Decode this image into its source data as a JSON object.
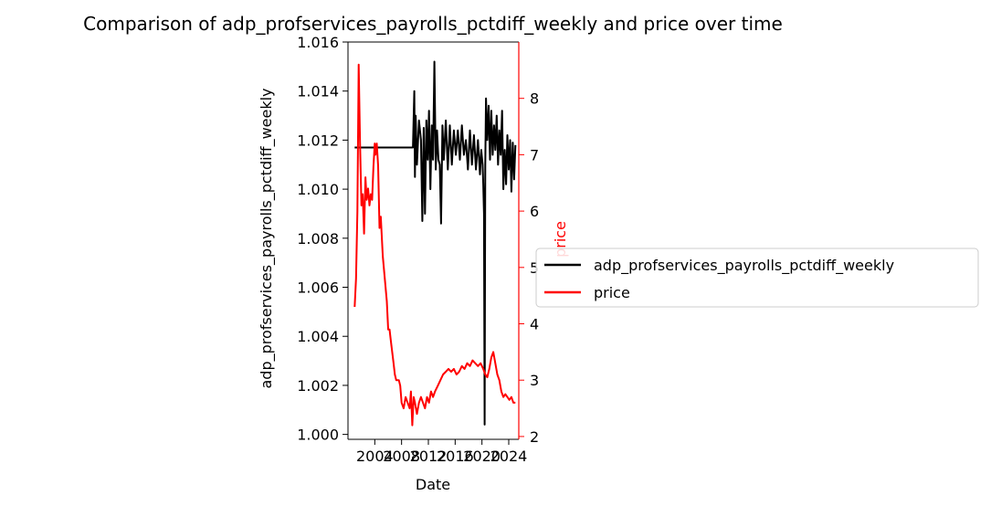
{
  "chart_data": {
    "type": "line",
    "title": "Comparison of adp_profservices_payrolls_pctdiff_weekly and price over time",
    "xlabel": "Date",
    "ylabel_left": "adp_profservices_payrolls_pctdiff_weekly",
    "ylabel_right": "price",
    "xlim": [
      2000.0,
      2025.5
    ],
    "ylim_left": [
      0.9998,
      1.016
    ],
    "ylim_right": [
      1.95,
      9.0
    ],
    "x_ticks": [
      "2004",
      "2008",
      "2012",
      "2016",
      "2020",
      "2024"
    ],
    "y_left_ticks": [
      "1.000",
      "1.002",
      "1.004",
      "1.006",
      "1.008",
      "1.010",
      "1.012",
      "1.014",
      "1.016"
    ],
    "y_right_ticks": [
      "2",
      "3",
      "4",
      "5",
      "6",
      "7",
      "8"
    ],
    "legend": {
      "placement": "right-outside",
      "entries": [
        "adp_profservices_payrolls_pctdiff_weekly",
        "price"
      ]
    },
    "grid": false,
    "series": [
      {
        "name": "adp_profservices_payrolls_pctdiff_weekly",
        "axis": "left",
        "color": "#000000",
        "x": [
          2001.0,
          2009.7,
          2009.9,
          2010.0,
          2010.1,
          2010.3,
          2010.6,
          2010.9,
          2011.1,
          2011.3,
          2011.5,
          2011.7,
          2011.9,
          2012.1,
          2012.3,
          2012.5,
          2012.7,
          2012.9,
          2013.1,
          2013.3,
          2013.5,
          2013.7,
          2013.9,
          2014.1,
          2014.3,
          2014.6,
          2014.9,
          2015.2,
          2015.5,
          2015.8,
          2016.1,
          2016.4,
          2016.7,
          2017.0,
          2017.3,
          2017.6,
          2017.9,
          2018.2,
          2018.5,
          2018.8,
          2019.1,
          2019.4,
          2019.7,
          2019.9,
          2020.1,
          2020.2,
          2020.3,
          2020.4,
          2020.5,
          2020.6,
          2020.8,
          2021.0,
          2021.2,
          2021.4,
          2021.6,
          2021.8,
          2022.0,
          2022.2,
          2022.4,
          2022.6,
          2022.8,
          2023.0,
          2023.2,
          2023.4,
          2023.6,
          2023.8,
          2024.0,
          2024.2,
          2024.4,
          2024.6,
          2024.8,
          2025.0
        ],
        "values": [
          1.0117,
          1.0117,
          1.014,
          1.0105,
          1.013,
          1.011,
          1.0128,
          1.012,
          1.0087,
          1.0125,
          1.009,
          1.0128,
          1.0112,
          1.0132,
          1.01,
          1.0126,
          1.0112,
          1.0152,
          1.0108,
          1.0124,
          1.0112,
          1.011,
          1.0086,
          1.0126,
          1.0112,
          1.0128,
          1.0108,
          1.0126,
          1.011,
          1.0124,
          1.0114,
          1.0124,
          1.0112,
          1.0126,
          1.0114,
          1.012,
          1.0108,
          1.0124,
          1.011,
          1.0122,
          1.0108,
          1.012,
          1.0106,
          1.0116,
          1.011,
          1.0102,
          1.009,
          1.0004,
          1.011,
          1.0137,
          1.012,
          1.0134,
          1.0112,
          1.0132,
          1.0114,
          1.0126,
          1.0116,
          1.013,
          1.011,
          1.0124,
          1.0114,
          1.0132,
          1.01,
          1.0116,
          1.0102,
          1.0122,
          1.0108,
          1.012,
          1.0099,
          1.0119,
          1.0104,
          1.0118
        ]
      },
      {
        "name": "price",
        "axis": "right",
        "color": "#ff0000",
        "x": [
          2001.0,
          2001.2,
          2001.4,
          2001.6,
          2001.8,
          2002.0,
          2002.2,
          2002.4,
          2002.6,
          2002.8,
          2003.0,
          2003.2,
          2003.4,
          2003.6,
          2003.8,
          2004.0,
          2004.1,
          2004.3,
          2004.5,
          2004.7,
          2004.9,
          2005.2,
          2005.5,
          2005.8,
          2006.0,
          2006.2,
          2006.4,
          2006.6,
          2006.8,
          2007.0,
          2007.2,
          2007.4,
          2007.6,
          2007.8,
          2008.0,
          2008.3,
          2008.6,
          2008.9,
          2009.2,
          2009.4,
          2009.6,
          2009.8,
          2010.0,
          2010.3,
          2010.6,
          2010.9,
          2011.2,
          2011.5,
          2011.8,
          2012.1,
          2012.4,
          2012.7,
          2013.0,
          2013.4,
          2013.8,
          2014.2,
          2014.6,
          2015.0,
          2015.4,
          2015.8,
          2016.2,
          2016.6,
          2017.0,
          2017.4,
          2017.8,
          2018.2,
          2018.6,
          2019.0,
          2019.4,
          2019.8,
          2020.2,
          2020.5,
          2020.8,
          2021.1,
          2021.4,
          2021.7,
          2022.0,
          2022.3,
          2022.6,
          2022.9,
          2023.2,
          2023.5,
          2023.8,
          2024.1,
          2024.4,
          2024.7,
          2025.0
        ],
        "values": [
          4.3,
          4.8,
          6.0,
          8.6,
          7.2,
          6.1,
          6.3,
          5.6,
          6.6,
          6.2,
          6.4,
          6.1,
          6.3,
          6.2,
          6.8,
          7.2,
          7.0,
          7.2,
          6.8,
          5.7,
          5.9,
          5.2,
          4.8,
          4.4,
          3.9,
          3.9,
          3.7,
          3.5,
          3.3,
          3.1,
          3.0,
          3.0,
          3.0,
          2.9,
          2.6,
          2.5,
          2.7,
          2.6,
          2.5,
          2.8,
          2.2,
          2.7,
          2.6,
          2.4,
          2.6,
          2.7,
          2.6,
          2.5,
          2.7,
          2.6,
          2.8,
          2.7,
          2.8,
          2.9,
          3.0,
          3.1,
          3.15,
          3.2,
          3.15,
          3.2,
          3.1,
          3.15,
          3.25,
          3.2,
          3.3,
          3.25,
          3.35,
          3.3,
          3.25,
          3.3,
          3.2,
          3.1,
          3.05,
          3.2,
          3.4,
          3.5,
          3.3,
          3.1,
          3.0,
          2.8,
          2.7,
          2.75,
          2.7,
          2.65,
          2.7,
          2.6,
          2.6
        ]
      }
    ]
  }
}
